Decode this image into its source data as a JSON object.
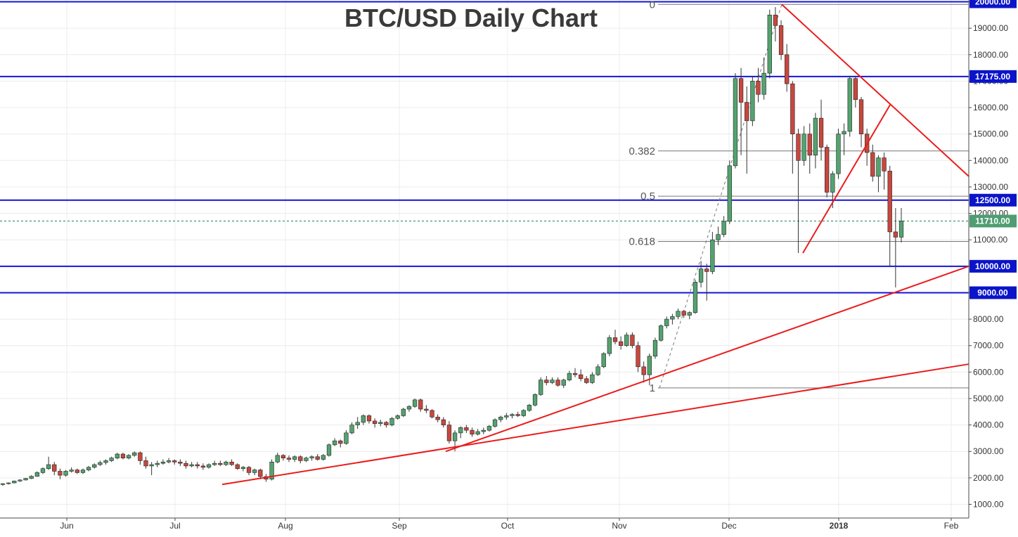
{
  "chart_data": {
    "type": "candlestick",
    "title": "BTC/USD Daily Chart",
    "x_tick_labels": [
      "Jun",
      "Jul",
      "Aug",
      "Sep",
      "Oct",
      "Nov",
      "Dec",
      "2018",
      "Feb"
    ],
    "y_tick_labels": [
      "1000.00",
      "2000.00",
      "3000.00",
      "4000.00",
      "5000.00",
      "6000.00",
      "7000.00",
      "8000.00",
      "9000.00",
      "10000.00",
      "11000.00",
      "12000.00",
      "13000.00",
      "14000.00",
      "15000.00",
      "16000.00",
      "17000.00",
      "18000.00",
      "19000.00",
      "20000.00"
    ],
    "ylim": [
      300,
      20200
    ],
    "grid": true,
    "last_price": 11710,
    "last_price_label": "11710.00",
    "horizontal_levels": [
      {
        "value": 20000,
        "label": "20000.00"
      },
      {
        "value": 17175,
        "label": "17175.00"
      },
      {
        "value": 12500,
        "label": "12500.00"
      },
      {
        "value": 10000,
        "label": "10000.00"
      },
      {
        "value": 9000,
        "label": "9000.00"
      }
    ],
    "fibonacci": {
      "high": 19900,
      "low": 5400,
      "levels": [
        {
          "ratio": 0,
          "label": "0",
          "price": 19900
        },
        {
          "ratio": 0.382,
          "label": "0.382",
          "price": 14360
        },
        {
          "ratio": 0.5,
          "label": "0.5",
          "price": 12650
        },
        {
          "ratio": 0.618,
          "label": "0.618",
          "price": 10940
        },
        {
          "ratio": 1,
          "label": "1",
          "price": 5400
        }
      ]
    },
    "trend_lines": [
      {
        "from": [
          0,
          1750
        ],
        "to": [
          0.6,
          3000
        ],
        "extend_price_at_end": 6300
      },
      {
        "from": [
          0,
          3000
        ],
        "to": [
          0.5,
          5700
        ],
        "extend_price_at_end": 10000
      },
      {
        "from": [
          0,
          19900
        ],
        "to": [
          1,
          13400
        ]
      },
      {
        "from": [
          0,
          10500
        ],
        "to": [
          1,
          16100
        ]
      }
    ],
    "candles": [
      [
        1750,
        1800,
        1700,
        1780
      ],
      [
        1780,
        1830,
        1750,
        1810
      ],
      [
        1810,
        1900,
        1790,
        1880
      ],
      [
        1880,
        1950,
        1850,
        1920
      ],
      [
        1920,
        2000,
        1900,
        1980
      ],
      [
        1980,
        2100,
        1950,
        2060
      ],
      [
        2060,
        2250,
        2040,
        2200
      ],
      [
        2200,
        2400,
        2150,
        2350
      ],
      [
        2350,
        2800,
        2300,
        2500
      ],
      [
        2500,
        2600,
        2100,
        2250
      ],
      [
        2250,
        2350,
        1950,
        2100
      ],
      [
        2100,
        2300,
        2050,
        2250
      ],
      [
        2250,
        2400,
        2200,
        2300
      ],
      [
        2300,
        2350,
        2150,
        2200
      ],
      [
        2200,
        2350,
        2150,
        2300
      ],
      [
        2300,
        2450,
        2250,
        2400
      ],
      [
        2400,
        2550,
        2350,
        2500
      ],
      [
        2500,
        2650,
        2450,
        2580
      ],
      [
        2580,
        2700,
        2500,
        2650
      ],
      [
        2650,
        2800,
        2600,
        2750
      ],
      [
        2750,
        2950,
        2700,
        2900
      ],
      [
        2900,
        2950,
        2700,
        2750
      ],
      [
        2750,
        2900,
        2700,
        2850
      ],
      [
        2850,
        3000,
        2800,
        2950
      ],
      [
        2950,
        3000,
        2500,
        2650
      ],
      [
        2650,
        2800,
        2350,
        2450
      ],
      [
        2450,
        2600,
        2100,
        2500
      ],
      [
        2500,
        2650,
        2400,
        2550
      ],
      [
        2550,
        2700,
        2500,
        2600
      ],
      [
        2600,
        2750,
        2550,
        2650
      ],
      [
        2650,
        2700,
        2500,
        2600
      ],
      [
        2600,
        2700,
        2450,
        2550
      ],
      [
        2550,
        2650,
        2350,
        2450
      ],
      [
        2450,
        2600,
        2400,
        2500
      ],
      [
        2500,
        2600,
        2350,
        2450
      ],
      [
        2450,
        2550,
        2300,
        2400
      ],
      [
        2400,
        2550,
        2350,
        2500
      ],
      [
        2500,
        2650,
        2450,
        2550
      ],
      [
        2550,
        2650,
        2450,
        2500
      ],
      [
        2500,
        2650,
        2450,
        2600
      ],
      [
        2600,
        2700,
        2450,
        2500
      ],
      [
        2500,
        2550,
        2300,
        2350
      ],
      [
        2350,
        2450,
        2250,
        2400
      ],
      [
        2400,
        2450,
        2100,
        2200
      ],
      [
        2200,
        2350,
        2100,
        2300
      ],
      [
        2300,
        2350,
        1950,
        2050
      ],
      [
        2050,
        2150,
        1850,
        1950
      ],
      [
        1950,
        2700,
        1900,
        2600
      ],
      [
        2600,
        2950,
        2550,
        2850
      ],
      [
        2850,
        2900,
        2650,
        2750
      ],
      [
        2750,
        2850,
        2600,
        2700
      ],
      [
        2700,
        2850,
        2600,
        2800
      ],
      [
        2800,
        2850,
        2550,
        2650
      ],
      [
        2650,
        2800,
        2600,
        2750
      ],
      [
        2750,
        2850,
        2650,
        2800
      ],
      [
        2800,
        2900,
        2650,
        2700
      ],
      [
        2700,
        2900,
        2650,
        2850
      ],
      [
        2850,
        3300,
        2800,
        3250
      ],
      [
        3250,
        3500,
        3200,
        3400
      ],
      [
        3400,
        3450,
        3150,
        3300
      ],
      [
        3300,
        3800,
        3250,
        3700
      ],
      [
        3700,
        4100,
        3650,
        4000
      ],
      [
        4000,
        4300,
        3850,
        4100
      ],
      [
        4100,
        4400,
        4000,
        4350
      ],
      [
        4350,
        4400,
        4050,
        4150
      ],
      [
        4150,
        4250,
        3900,
        4050
      ],
      [
        4050,
        4200,
        3950,
        4100
      ],
      [
        4100,
        4150,
        3900,
        4000
      ],
      [
        4000,
        4300,
        3950,
        4250
      ],
      [
        4250,
        4400,
        4200,
        4350
      ],
      [
        4350,
        4650,
        4300,
        4600
      ],
      [
        4600,
        4750,
        4500,
        4700
      ],
      [
        4700,
        5000,
        4650,
        4950
      ],
      [
        4950,
        5000,
        4500,
        4600
      ],
      [
        4600,
        4750,
        4450,
        4550
      ],
      [
        4550,
        4600,
        4250,
        4300
      ],
      [
        4300,
        4400,
        4100,
        4200
      ],
      [
        4200,
        4300,
        3900,
        4000
      ],
      [
        4000,
        4150,
        3300,
        3400
      ],
      [
        3400,
        3800,
        3000,
        3700
      ],
      [
        3700,
        3950,
        3500,
        3900
      ],
      [
        3900,
        4000,
        3700,
        3800
      ],
      [
        3800,
        3900,
        3550,
        3650
      ],
      [
        3650,
        3850,
        3600,
        3750
      ],
      [
        3750,
        3900,
        3650,
        3800
      ],
      [
        3800,
        4000,
        3750,
        3950
      ],
      [
        3950,
        4250,
        3900,
        4200
      ],
      [
        4200,
        4350,
        4100,
        4300
      ],
      [
        4300,
        4450,
        4200,
        4350
      ],
      [
        4350,
        4450,
        4250,
        4400
      ],
      [
        4400,
        4500,
        4300,
        4350
      ],
      [
        4350,
        4600,
        4300,
        4550
      ],
      [
        4550,
        4800,
        4500,
        4750
      ],
      [
        4750,
        5200,
        4700,
        5150
      ],
      [
        5150,
        5800,
        5100,
        5700
      ],
      [
        5700,
        5850,
        5500,
        5600
      ],
      [
        5600,
        5800,
        5550,
        5700
      ],
      [
        5700,
        5800,
        5450,
        5500
      ],
      [
        5500,
        5750,
        5400,
        5700
      ],
      [
        5700,
        6050,
        5650,
        5950
      ],
      [
        5950,
        6150,
        5800,
        5900
      ],
      [
        5900,
        6100,
        5650,
        5750
      ],
      [
        5750,
        5850,
        5550,
        5600
      ],
      [
        5600,
        6000,
        5550,
        5900
      ],
      [
        5900,
        6300,
        5850,
        6200
      ],
      [
        6200,
        6750,
        6150,
        6700
      ],
      [
        6700,
        7400,
        6600,
        7300
      ],
      [
        7300,
        7600,
        7050,
        7150
      ],
      [
        7150,
        7350,
        6850,
        7000
      ],
      [
        7000,
        7500,
        6950,
        7400
      ],
      [
        7400,
        7500,
        6900,
        7000
      ],
      [
        7000,
        7150,
        6000,
        6200
      ],
      [
        6200,
        6400,
        5600,
        5900
      ],
      [
        5900,
        6700,
        5500,
        6600
      ],
      [
        6600,
        7300,
        6500,
        7200
      ],
      [
        7200,
        7800,
        7150,
        7750
      ],
      [
        7750,
        8100,
        7650,
        8000
      ],
      [
        8000,
        8200,
        7800,
        8100
      ],
      [
        8100,
        8400,
        8000,
        8300
      ],
      [
        8300,
        8350,
        8050,
        8150
      ],
      [
        8150,
        8300,
        8000,
        8250
      ],
      [
        8250,
        9500,
        8200,
        9400
      ],
      [
        9400,
        10200,
        9200,
        9900
      ],
      [
        9900,
        10100,
        8700,
        9800
      ],
      [
        9800,
        11300,
        9700,
        11000
      ],
      [
        11000,
        11500,
        10800,
        11200
      ],
      [
        11200,
        11900,
        11100,
        11700
      ],
      [
        11700,
        14000,
        11600,
        13800
      ],
      [
        13800,
        17300,
        13700,
        17100
      ],
      [
        17100,
        17500,
        14200,
        16200
      ],
      [
        16200,
        16800,
        13500,
        15500
      ],
      [
        15500,
        17200,
        15300,
        17000
      ],
      [
        17000,
        17500,
        16200,
        16500
      ],
      [
        16500,
        17900,
        16300,
        17300
      ],
      [
        17300,
        19700,
        17100,
        19500
      ],
      [
        19500,
        19800,
        18500,
        19100
      ],
      [
        19100,
        19300,
        17800,
        18000
      ],
      [
        18000,
        18400,
        16600,
        16900
      ],
      [
        16900,
        17000,
        13500,
        15000
      ],
      [
        15000,
        15200,
        10500,
        14000
      ],
      [
        14000,
        15300,
        13800,
        15000
      ],
      [
        15000,
        15400,
        13500,
        14200
      ],
      [
        14200,
        15800,
        13700,
        15600
      ],
      [
        15600,
        16300,
        14000,
        14500
      ],
      [
        14500,
        14600,
        12600,
        12800
      ],
      [
        12800,
        13600,
        12200,
        13500
      ],
      [
        13500,
        15200,
        13300,
        15000
      ],
      [
        15000,
        15400,
        14200,
        15100
      ],
      [
        15100,
        17200,
        14900,
        17100
      ],
      [
        17100,
        17200,
        16000,
        16300
      ],
      [
        16300,
        16400,
        14500,
        15000
      ],
      [
        15000,
        15200,
        13800,
        14300
      ],
      [
        14300,
        14600,
        13200,
        13400
      ],
      [
        13400,
        14200,
        12800,
        14100
      ],
      [
        14100,
        14300,
        12900,
        13600
      ],
      [
        13600,
        13800,
        10000,
        11300
      ],
      [
        11300,
        12200,
        9200,
        11100
      ],
      [
        11100,
        12200,
        10900,
        11710
      ]
    ]
  }
}
